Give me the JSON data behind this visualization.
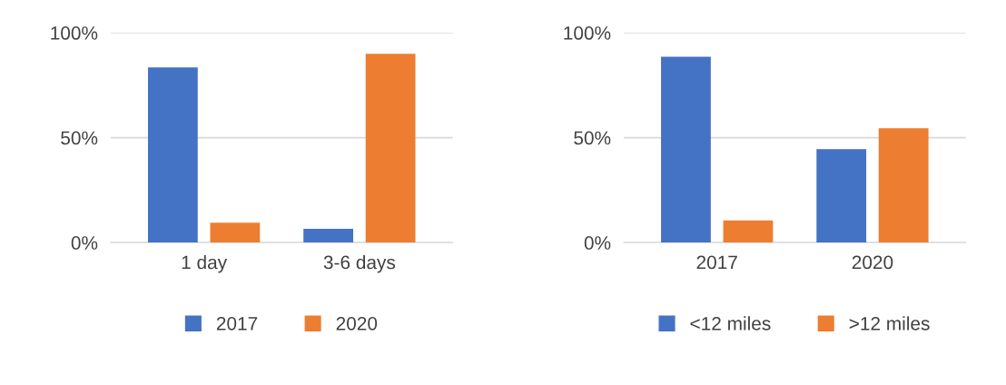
{
  "chart_data": [
    {
      "type": "bar",
      "categories": [
        "1 day",
        "3-6 days"
      ],
      "series": [
        {
          "name": "2017",
          "color": "#4472c4",
          "values": [
            83.5,
            6.5
          ]
        },
        {
          "name": "2020",
          "color": "#ed7d31",
          "values": [
            9.5,
            90
          ]
        }
      ],
      "ylim": [
        0,
        100
      ],
      "yticks": [
        {
          "value": 0,
          "label": "0%"
        },
        {
          "value": 50,
          "label": "50%"
        },
        {
          "value": 100,
          "label": "100%"
        }
      ],
      "grid": "y",
      "legend": "bottom"
    },
    {
      "type": "bar",
      "categories": [
        "2017",
        "2020"
      ],
      "series": [
        {
          "name": "<12 miles",
          "color": "#4472c4",
          "values": [
            88.5,
            44.5
          ]
        },
        {
          "name": ">12 miles",
          "color": "#ed7d31",
          "values": [
            10.5,
            54.5
          ]
        }
      ],
      "ylim": [
        0,
        100
      ],
      "yticks": [
        {
          "value": 0,
          "label": "0%"
        },
        {
          "value": 50,
          "label": "50%"
        },
        {
          "value": 100,
          "label": "100%"
        }
      ],
      "grid": "y",
      "legend": "bottom"
    }
  ]
}
